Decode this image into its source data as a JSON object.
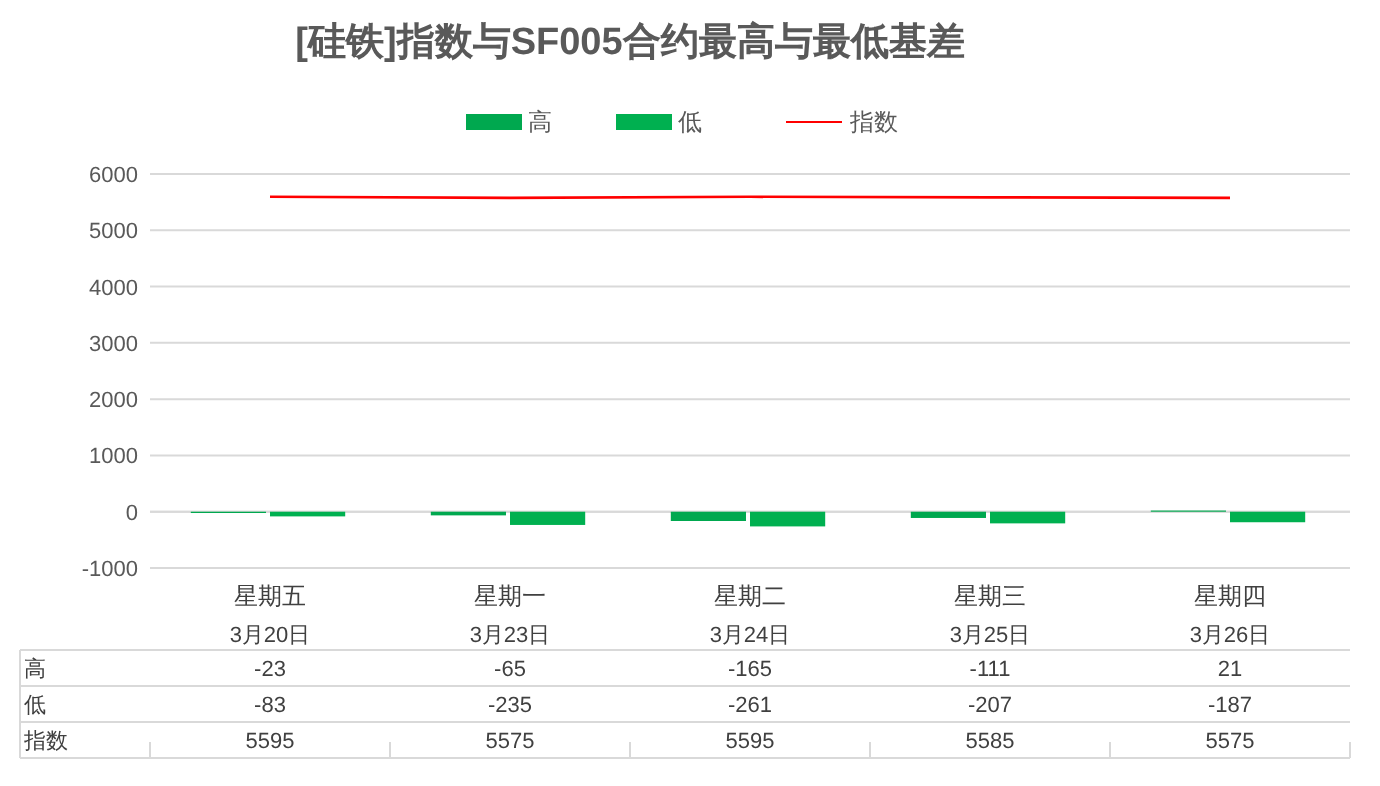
{
  "chart_data": {
    "type": "bar",
    "title": "[硅铁]指数与SF005合约最高与最低基差",
    "categories": [
      "星期五\n3月20日",
      "星期一\n3月23日",
      "星期二\n3月24日",
      "星期三\n3月25日",
      "星期四\n3月26日"
    ],
    "series": [
      {
        "name": "高",
        "color": "#00a84f",
        "values": [
          -23,
          -65,
          -165,
          -111,
          21
        ]
      },
      {
        "name": "低",
        "color": "#00b050",
        "values": [
          -83,
          -235,
          -261,
          -207,
          -187
        ]
      },
      {
        "name": "指数",
        "type": "line",
        "color": "#ff0000",
        "values": [
          5595,
          5575,
          5595,
          5585,
          5575
        ]
      }
    ],
    "ylim": [
      -1000,
      6000
    ],
    "yticks": [
      -1000,
      0,
      1000,
      2000,
      3000,
      4000,
      5000,
      6000
    ],
    "grid": "y",
    "legend": "top",
    "data_labels": true
  }
}
